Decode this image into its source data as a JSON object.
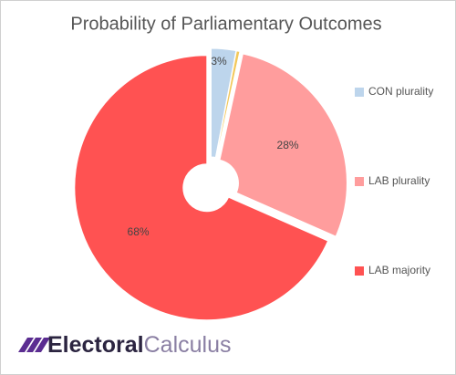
{
  "chart_data": {
    "type": "pie",
    "title": "Probability of Parliamentary Outcomes",
    "categories": [
      "CON plurality",
      null,
      "LAB plurality",
      "LAB majority"
    ],
    "values": [
      3,
      0.4,
      28,
      68
    ],
    "value_labels": [
      "3%",
      null,
      "28%",
      "68%"
    ],
    "colors": [
      "#bdd5ec",
      "#f2c85b",
      "#ff9d9d",
      "#ff5252"
    ],
    "legend": "right",
    "logo": [
      "Electoral",
      "Calculus"
    ]
  }
}
